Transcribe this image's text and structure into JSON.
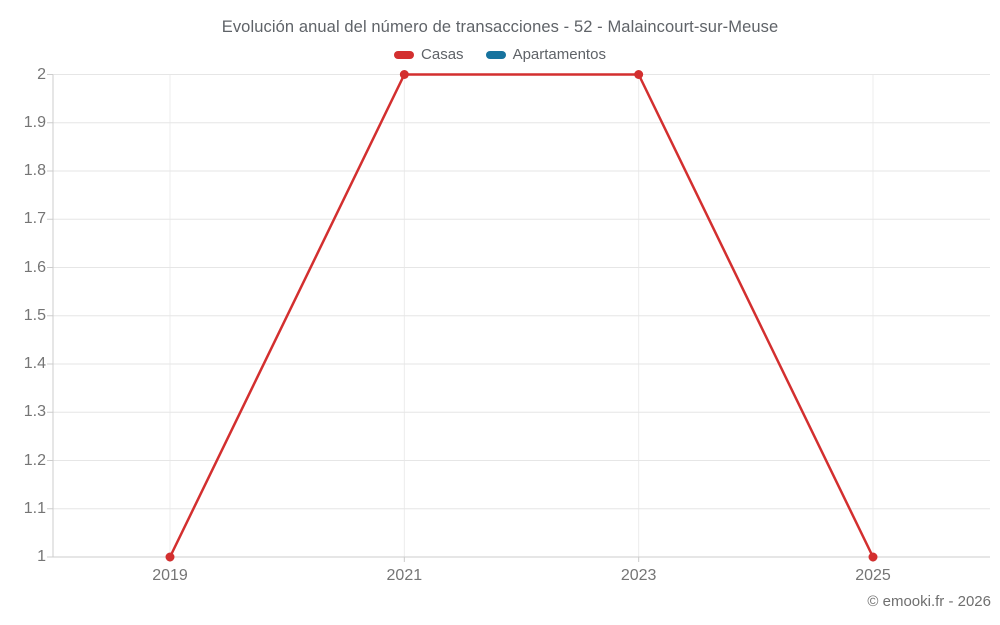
{
  "header": {
    "title": "Evolución anual del número de transacciones - 52 - Malaincourt-sur-Meuse"
  },
  "legend": [
    {
      "label": "Casas",
      "color": "#d32f2f"
    },
    {
      "label": "Apartamentos",
      "color": "#17739e"
    }
  ],
  "footer": {
    "copyright": "© emooki.fr - 2026"
  },
  "colors": {
    "grid_horizontal": "#e6e6e6",
    "grid_vertical": "#ececec",
    "axis": "#cccccc",
    "tick": "#cccccc",
    "tick_label": "#757575",
    "series_casas": "#d32f2f",
    "series_apartamentos": "#17739e"
  },
  "chart_data": {
    "type": "line",
    "title": "Evolución anual del número de transacciones - 52 - Malaincourt-sur-Meuse",
    "categories": [
      "2019",
      "2021",
      "2023",
      "2025"
    ],
    "series": [
      {
        "name": "Casas",
        "color": "#d32f2f",
        "values": [
          1,
          2,
          2,
          1
        ]
      },
      {
        "name": "Apartamentos",
        "color": "#17739e",
        "values": []
      }
    ],
    "xlabel": "",
    "ylabel": "",
    "ylim": [
      1,
      2
    ],
    "yticks": [
      "1",
      "1.1",
      "1.2",
      "1.3",
      "1.4",
      "1.5",
      "1.6",
      "1.7",
      "1.8",
      "1.9",
      "2"
    ],
    "grid": true,
    "legend_position": "top",
    "point_markers": true
  }
}
